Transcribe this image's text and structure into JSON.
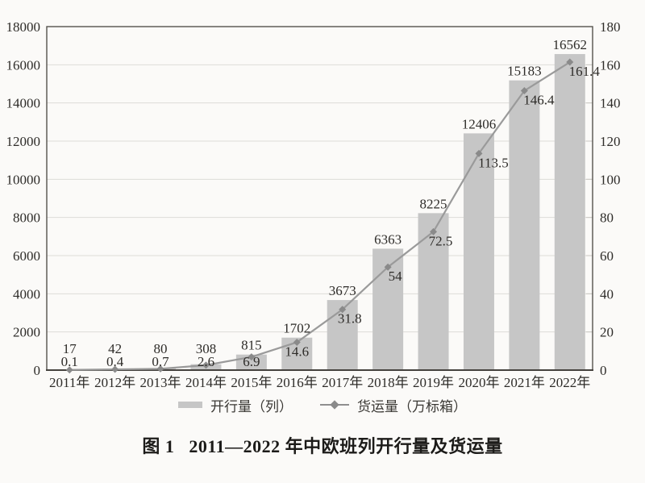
{
  "figure": {
    "caption_prefix": "图 1",
    "caption_title": "2011—2022 年中欧班列开行量及货运量"
  },
  "legend": {
    "bar_label": "开行量（列）",
    "line_label": "货运量（万标箱）"
  },
  "chart_data": {
    "type": "bar",
    "subtype": "bar+line-dual-axis",
    "title": "图 1  2011—2022 年中欧班列开行量及货运量",
    "categories": [
      "2011年",
      "2012年",
      "2013年",
      "2014年",
      "2015年",
      "2016年",
      "2017年",
      "2018年",
      "2019年",
      "2020年",
      "2021年",
      "2022年"
    ],
    "series": [
      {
        "name": "开行量（列）",
        "type": "bar",
        "axis": "left",
        "values": [
          17,
          42,
          80,
          308,
          815,
          1702,
          3673,
          6363,
          8225,
          12406,
          15183,
          16562
        ]
      },
      {
        "name": "货运量（万标箱）",
        "type": "line",
        "axis": "right",
        "values": [
          0.1,
          0.4,
          0.7,
          2.6,
          6.9,
          14.6,
          31.8,
          54,
          72.5,
          113.5,
          146.4,
          161.4
        ]
      }
    ],
    "left_axis": {
      "min": 0,
      "max": 18000,
      "step": 2000,
      "ticks": [
        0,
        2000,
        4000,
        6000,
        8000,
        10000,
        12000,
        14000,
        16000,
        18000
      ]
    },
    "right_axis": {
      "min": 0,
      "max": 180,
      "step": 20,
      "ticks": [
        0,
        20,
        40,
        60,
        80,
        100,
        120,
        140,
        160,
        180
      ]
    },
    "grid": true,
    "data_labels": true,
    "legend_position": "bottom",
    "colors": {
      "bar": "#c6c6c6",
      "line": "#9a9a9a",
      "marker": "#8a8a8a",
      "grid": "#dddcd8",
      "border": "#55524d",
      "axis_bottom": "#45423e",
      "text": "#2e2c29",
      "background": "#fbfaf8"
    }
  }
}
